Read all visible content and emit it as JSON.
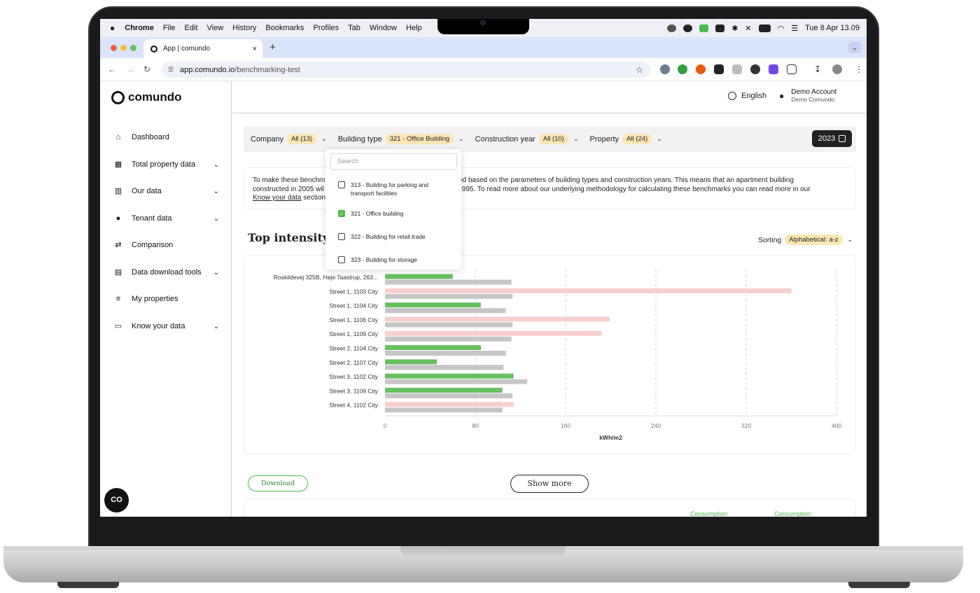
{
  "menubar": {
    "apple": "",
    "app": "Chrome",
    "items": [
      "File",
      "Edit",
      "View",
      "History",
      "Bookmarks",
      "Profiles",
      "Tab",
      "Window",
      "Help"
    ],
    "clock": "Tue 8 Apr  13.09"
  },
  "browser": {
    "tab_title": "App | comundo",
    "tab_close": "×",
    "new_tab": "+",
    "url_host": "app.comundo.io",
    "url_path": "/benchmarking-test"
  },
  "sidebar": {
    "logo": "comundo",
    "items": [
      {
        "label": "Dashboard",
        "icon": "home-icon",
        "glyph": "⌂",
        "chevron": false
      },
      {
        "label": "Total property data",
        "icon": "buildings-icon",
        "glyph": "▦",
        "chevron": true
      },
      {
        "label": "Our data",
        "icon": "building-icon",
        "glyph": "▥",
        "chevron": true
      },
      {
        "label": "Tenant data",
        "icon": "person-icon",
        "glyph": "●",
        "chevron": true
      },
      {
        "label": "Comparison",
        "icon": "compare-icon",
        "glyph": "⇄",
        "chevron": false
      },
      {
        "label": "Data download tools",
        "icon": "download-doc-icon",
        "glyph": "▤",
        "chevron": true
      },
      {
        "label": "My properties",
        "icon": "edit-list-icon",
        "glyph": "≡",
        "chevron": false
      },
      {
        "label": "Know your data",
        "icon": "document-icon",
        "glyph": "▭",
        "chevron": true
      }
    ],
    "chat_button": "CO"
  },
  "header": {
    "language": "English",
    "account_name": "Demo Account",
    "account_org": "Demo Comundo"
  },
  "filters": {
    "company_label": "Company",
    "company_value": "All (13)",
    "building_label": "Building type",
    "building_value": "321 - Office Building",
    "year_label": "Construction year",
    "year_value": "All (10)",
    "property_label": "Property",
    "property_value": "All (24)",
    "year_button": "2023"
  },
  "info": {
    "line1_a": "To make these benchm",
    "line1_b": "re calculated based on the parameters of building types and construction years. This means that an apartment building",
    "line2_a": "constructed in 2005 wil",
    "line2_b": "y built in 1995. To read more about our underlying methodology for calculating these benchmarks you can read more in our",
    "link": "Know your data",
    "line3_b": " section"
  },
  "section_title": "Top intensity m",
  "sorting": {
    "label": "Sorting",
    "value": "Alphabetical: a-z"
  },
  "dropdown": {
    "search_placeholder": "Search",
    "options": [
      {
        "label_line1": "313 - Building for parking and",
        "label_line2": "transport facilities",
        "checked": false
      },
      {
        "label_line1": "321 - Office building",
        "label_line2": "",
        "checked": true
      },
      {
        "label_line1": "322 - Building for retail trade",
        "label_line2": "",
        "checked": false
      },
      {
        "label_line1": "323 - Building for storage",
        "label_line2": "",
        "checked": false
      }
    ]
  },
  "chart_data": {
    "type": "bar",
    "orientation": "horizontal",
    "categories": [
      "Roskildevej 325B, Høje Taastrup, 263...",
      "Street 1, 1103 City",
      "Street 1, 1104 City",
      "Street 1, 1106 City",
      "Street 1, 1109 City",
      "Street 2, 1104 City",
      "Street 2, 1107 City",
      "Street 3, 1102 City",
      "Street 3, 1109 City",
      "Street 4, 1102 City"
    ],
    "series": [
      {
        "values": [
          60,
          360,
          85,
          199,
          192,
          85,
          46,
          114,
          104,
          114
        ],
        "colors": [
          "#6abf62",
          "#f7cfcf",
          "#6abf62",
          "#f7cfcf",
          "#f7cfcf",
          "#6abf62",
          "#6abf62",
          "#6abf62",
          "#6abf62",
          "#f7cfcf"
        ]
      },
      {
        "values": [
          112,
          113,
          107,
          113,
          112,
          107,
          105,
          126,
          113,
          104
        ],
        "color": "#c6c6c6"
      }
    ],
    "xlabel": "kWh/m2",
    "xlim": [
      0,
      400
    ],
    "xticks": [
      "0",
      "80",
      "160",
      "240",
      "320",
      "400"
    ],
    "grid": "vertical-dashed"
  },
  "actions": {
    "download": "Download",
    "show_more": "Show more"
  },
  "next_table": {
    "col1": "Consumption",
    "col2": "Consumption"
  }
}
